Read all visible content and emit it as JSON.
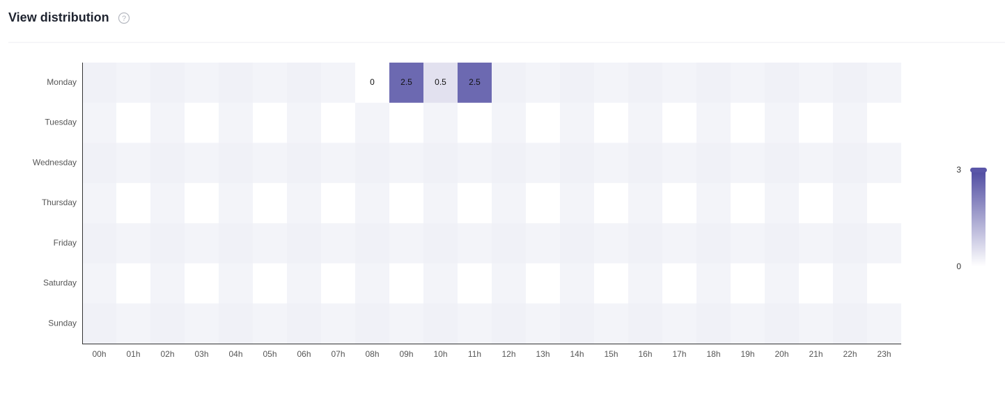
{
  "chart_data": {
    "type": "heatmap",
    "title": "View distribution",
    "x_categories": [
      "00h",
      "01h",
      "02h",
      "03h",
      "04h",
      "05h",
      "06h",
      "07h",
      "08h",
      "09h",
      "10h",
      "11h",
      "12h",
      "13h",
      "14h",
      "15h",
      "16h",
      "17h",
      "18h",
      "19h",
      "20h",
      "21h",
      "22h",
      "23h"
    ],
    "y_categories": [
      "Monday",
      "Tuesday",
      "Wednesday",
      "Thursday",
      "Friday",
      "Saturday",
      "Sunday"
    ],
    "values": [
      [
        null,
        null,
        null,
        null,
        null,
        null,
        null,
        null,
        0,
        2.5,
        0.5,
        2.5,
        null,
        null,
        null,
        null,
        null,
        null,
        null,
        null,
        null,
        null,
        null,
        null
      ],
      [
        null,
        null,
        null,
        null,
        null,
        null,
        null,
        null,
        null,
        null,
        null,
        null,
        null,
        null,
        null,
        null,
        null,
        null,
        null,
        null,
        null,
        null,
        null,
        null
      ],
      [
        null,
        null,
        null,
        null,
        null,
        null,
        null,
        null,
        null,
        null,
        null,
        null,
        null,
        null,
        null,
        null,
        null,
        null,
        null,
        null,
        null,
        null,
        null,
        null
      ],
      [
        null,
        null,
        null,
        null,
        null,
        null,
        null,
        null,
        null,
        null,
        null,
        null,
        null,
        null,
        null,
        null,
        null,
        null,
        null,
        null,
        null,
        null,
        null,
        null
      ],
      [
        null,
        null,
        null,
        null,
        null,
        null,
        null,
        null,
        null,
        null,
        null,
        null,
        null,
        null,
        null,
        null,
        null,
        null,
        null,
        null,
        null,
        null,
        null,
        null
      ],
      [
        null,
        null,
        null,
        null,
        null,
        null,
        null,
        null,
        null,
        null,
        null,
        null,
        null,
        null,
        null,
        null,
        null,
        null,
        null,
        null,
        null,
        null,
        null,
        null
      ],
      [
        null,
        null,
        null,
        null,
        null,
        null,
        null,
        null,
        null,
        null,
        null,
        null,
        null,
        null,
        null,
        null,
        null,
        null,
        null,
        null,
        null,
        null,
        null,
        null
      ]
    ],
    "visual_map": {
      "range": [
        0,
        3
      ],
      "colors": [
        "#ffffff",
        "#4f4ba1"
      ]
    }
  }
}
